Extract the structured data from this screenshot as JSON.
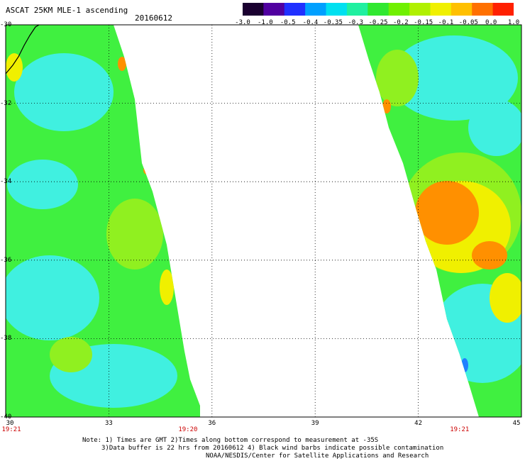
{
  "header": {
    "title": "ASCAT 25KM MLE-1 ascending",
    "date": "20160612"
  },
  "colorbar": {
    "labels": [
      "-3.0",
      "-1.0",
      "-0.5",
      "-0.4",
      "-0.35",
      "-0.3",
      "-0.25",
      "-0.2",
      "-0.15",
      "-0.1",
      "-0.05",
      "0.0",
      "1.0"
    ],
    "colors": [
      "#1a0030",
      "#5000a0",
      "#2030ff",
      "#00a0ff",
      "#00e0f0",
      "#20f0a0",
      "#30e830",
      "#70f000",
      "#b0f000",
      "#f0f000",
      "#ffc000",
      "#ff7000",
      "#ff2000"
    ]
  },
  "axes": {
    "lat_labels": [
      "-30",
      "-32",
      "-34",
      "-36",
      "-38",
      "-40"
    ],
    "lon_labels": [
      "30",
      "33",
      "36",
      "39",
      "42",
      "45"
    ]
  },
  "time_labels": [
    {
      "text": "19:21",
      "lon": 30.1
    },
    {
      "text": "19:20",
      "lon": 35.3
    },
    {
      "text": "19:21",
      "lon": 43.2
    }
  ],
  "notes": {
    "line1": "Note: 1) Times are GMT 2)Times along bottom correspond to measurement at -35S",
    "line2": "3)Data buffer is 22 hrs from 20160612 4) Black wind barbs indicate possible contamination",
    "line3": "NOAA/NESDIS/Center for Satellite Applications and Research"
  },
  "map_colors": {
    "cyan": "#40f0e0",
    "green": "#40f040",
    "lime": "#90f020",
    "yellow": "#f0f000",
    "orange": "#ff9000",
    "blue": "#2080ff"
  }
}
